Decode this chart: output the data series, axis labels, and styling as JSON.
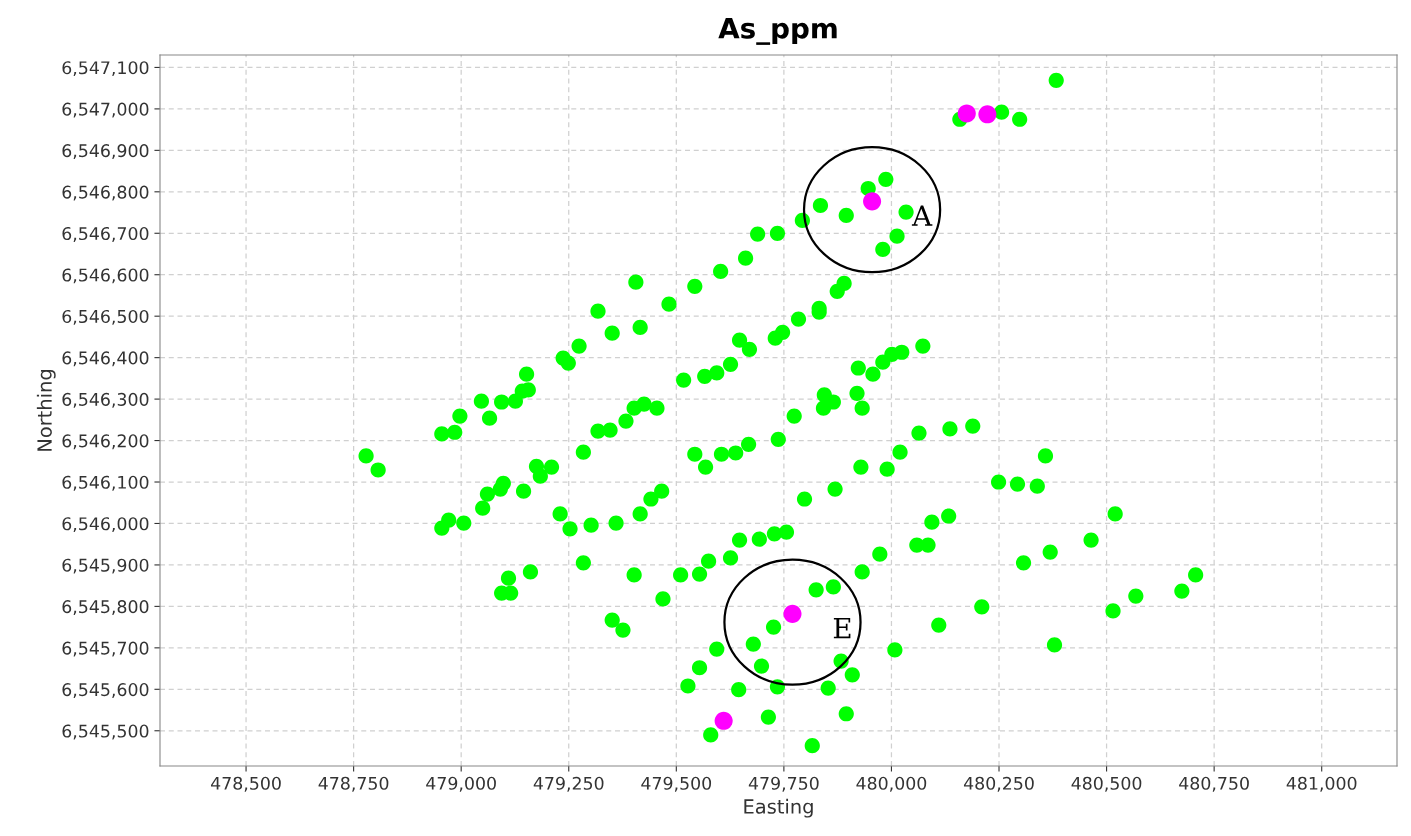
{
  "chart_data": {
    "type": "scatter",
    "title": "As_ppm",
    "xlabel": "Easting",
    "ylabel": "Northing",
    "xlim": [
      478300,
      481175
    ],
    "ylim": [
      6545415,
      6547130
    ],
    "xticks": [
      {
        "value": 478500,
        "label": "478,500"
      },
      {
        "value": 478750,
        "label": "478,750"
      },
      {
        "value": 479000,
        "label": "479,000"
      },
      {
        "value": 479250,
        "label": "479,250"
      },
      {
        "value": 479500,
        "label": "479,500"
      },
      {
        "value": 479750,
        "label": "479,750"
      },
      {
        "value": 480000,
        "label": "480,000"
      },
      {
        "value": 480250,
        "label": "480,250"
      },
      {
        "value": 480500,
        "label": "480,500"
      },
      {
        "value": 480750,
        "label": "480,750"
      },
      {
        "value": 481000,
        "label": "481,000"
      }
    ],
    "yticks": [
      {
        "value": 6545500,
        "label": "6,545,500"
      },
      {
        "value": 6545600,
        "label": "6,545,600"
      },
      {
        "value": 6545700,
        "label": "6,545,700"
      },
      {
        "value": 6545800,
        "label": "6,545,800"
      },
      {
        "value": 6545900,
        "label": "6,545,900"
      },
      {
        "value": 6546000,
        "label": "6,546,000"
      },
      {
        "value": 6546100,
        "label": "6,546,100"
      },
      {
        "value": 6546200,
        "label": "6,546,200"
      },
      {
        "value": 6546300,
        "label": "6,546,300"
      },
      {
        "value": 6546400,
        "label": "6,546,400"
      },
      {
        "value": 6546500,
        "label": "6,546,500"
      },
      {
        "value": 6546600,
        "label": "6,546,600"
      },
      {
        "value": 6546700,
        "label": "6,546,700"
      },
      {
        "value": 6546800,
        "label": "6,546,800"
      },
      {
        "value": 6546900,
        "label": "6,546,900"
      },
      {
        "value": 6547000,
        "label": "6,547,000"
      },
      {
        "value": 6547100,
        "label": "6,547,100"
      }
    ],
    "grid": true,
    "marker": "circle",
    "annotations": [
      {
        "text": "A",
        "x": 479955,
        "y": 6546777
      },
      {
        "text": "E",
        "x": 479770,
        "y": 6545782
      }
    ],
    "series": [
      {
        "color": "#00ff00",
        "x": [
          480383,
          480159,
          480256,
          480298,
          479987,
          479946,
          479895,
          480034,
          480013,
          479980,
          479835,
          479793,
          479735,
          479689,
          479661,
          479603,
          479543,
          479483,
          479406,
          479318,
          479351,
          479416,
          479274,
          479237,
          479249,
          479152,
          479156,
          479142,
          479126,
          479094,
          479047,
          479066,
          478997,
          478985,
          478955,
          478779,
          478807,
          479890,
          479874,
          479832,
          479832,
          479784,
          479747,
          479730,
          479670,
          479647,
          479626,
          479594,
          479566,
          479517,
          479923,
          479957,
          479980,
          480001,
          480024,
          480073,
          479844,
          479865,
          479842,
          479920,
          479932,
          479774,
          479425,
          479402,
          479455,
          479383,
          479346,
          479318,
          479284,
          480064,
          480136,
          480189,
          480020,
          479929,
          479990,
          479869,
          479798,
          479737,
          479668,
          479638,
          479605,
          479543,
          479568,
          480249,
          480293,
          480339,
          480358,
          479175,
          479184,
          479210,
          479098,
          479091,
          479061,
          479145,
          479050,
          478971,
          478955,
          479006,
          479230,
          479253,
          479302,
          479360,
          479416,
          479441,
          479466,
          480133,
          480094,
          480059,
          480085,
          479973,
          479932,
          479865,
          479825,
          480520,
          480464,
          480369,
          480307,
          480707,
          480675,
          480568,
          480515,
          480210,
          480110,
          480008,
          480379,
          479510,
          479554,
          479575,
          479626,
          479647,
          479693,
          479728,
          479756,
          479284,
          479161,
          479110,
          479094,
          479115,
          479402,
          479469,
          479351,
          479376,
          479726,
          479679,
          479594,
          479554,
          479527,
          479698,
          479645,
          479735,
          479883,
          479909,
          479853,
          479714,
          479895,
          479580,
          479816
        ],
        "values": [
          6547069,
          6546975,
          6546992,
          6546975,
          6546830,
          6546808,
          6546743,
          6546751,
          6546693,
          6546661,
          6546767,
          6546731,
          6546700,
          6546698,
          6546640,
          6546608,
          6546572,
          6546529,
          6546582,
          6546512,
          6546459,
          6546473,
          6546428,
          6546399,
          6546387,
          6546360,
          6546322,
          6546319,
          6546295,
          6546293,
          6546295,
          6546254,
          6546259,
          6546220,
          6546216,
          6546163,
          6546129,
          6546579,
          6546560,
          6546519,
          6546510,
          6546493,
          6546461,
          6546447,
          6546420,
          6546442,
          6546384,
          6546363,
          6546355,
          6546346,
          6546375,
          6546360,
          6546389,
          6546408,
          6546413,
          6546428,
          6546310,
          6546293,
          6546278,
          6546314,
          6546278,
          6546259,
          6546288,
          6546278,
          6546278,
          6546247,
          6546225,
          6546223,
          6546172,
          6546218,
          6546228,
          6546235,
          6546172,
          6546136,
          6546131,
          6546083,
          6546059,
          6546203,
          6546191,
          6546170,
          6546167,
          6546167,
          6546136,
          6546100,
          6546095,
          6546090,
          6546163,
          6546138,
          6546114,
          6546136,
          6546097,
          6546083,
          6546071,
          6546078,
          6546037,
          6546008,
          6545989,
          6546001,
          6546023,
          6545987,
          6545996,
          6546001,
          6546023,
          6546059,
          6546078,
          6546018,
          6546003,
          6545948,
          6545948,
          6545926,
          6545883,
          6545847,
          6545840,
          6546023,
          6545960,
          6545931,
          6545905,
          6545876,
          6545837,
          6545825,
          6545789,
          6545799,
          6545755,
          6545695,
          6545707,
          6545876,
          6545878,
          6545909,
          6545917,
          6545960,
          6545962,
          6545975,
          6545979,
          6545905,
          6545883,
          6545868,
          6545832,
          6545832,
          6545876,
          6545818,
          6545767,
          6545743,
          6545750,
          6545709,
          6545697,
          6545652,
          6545608,
          6545656,
          6545599,
          6545606,
          6545668,
          6545635,
          6545603,
          6545533,
          6545541,
          6545490,
          6545464
        ]
      },
      {
        "color": "#ff00ff",
        "x": [
          480175,
          480223,
          479955,
          479770,
          479610
        ],
        "values": [
          6546989,
          6546987,
          6546777,
          6545782,
          6545524
        ]
      }
    ]
  }
}
